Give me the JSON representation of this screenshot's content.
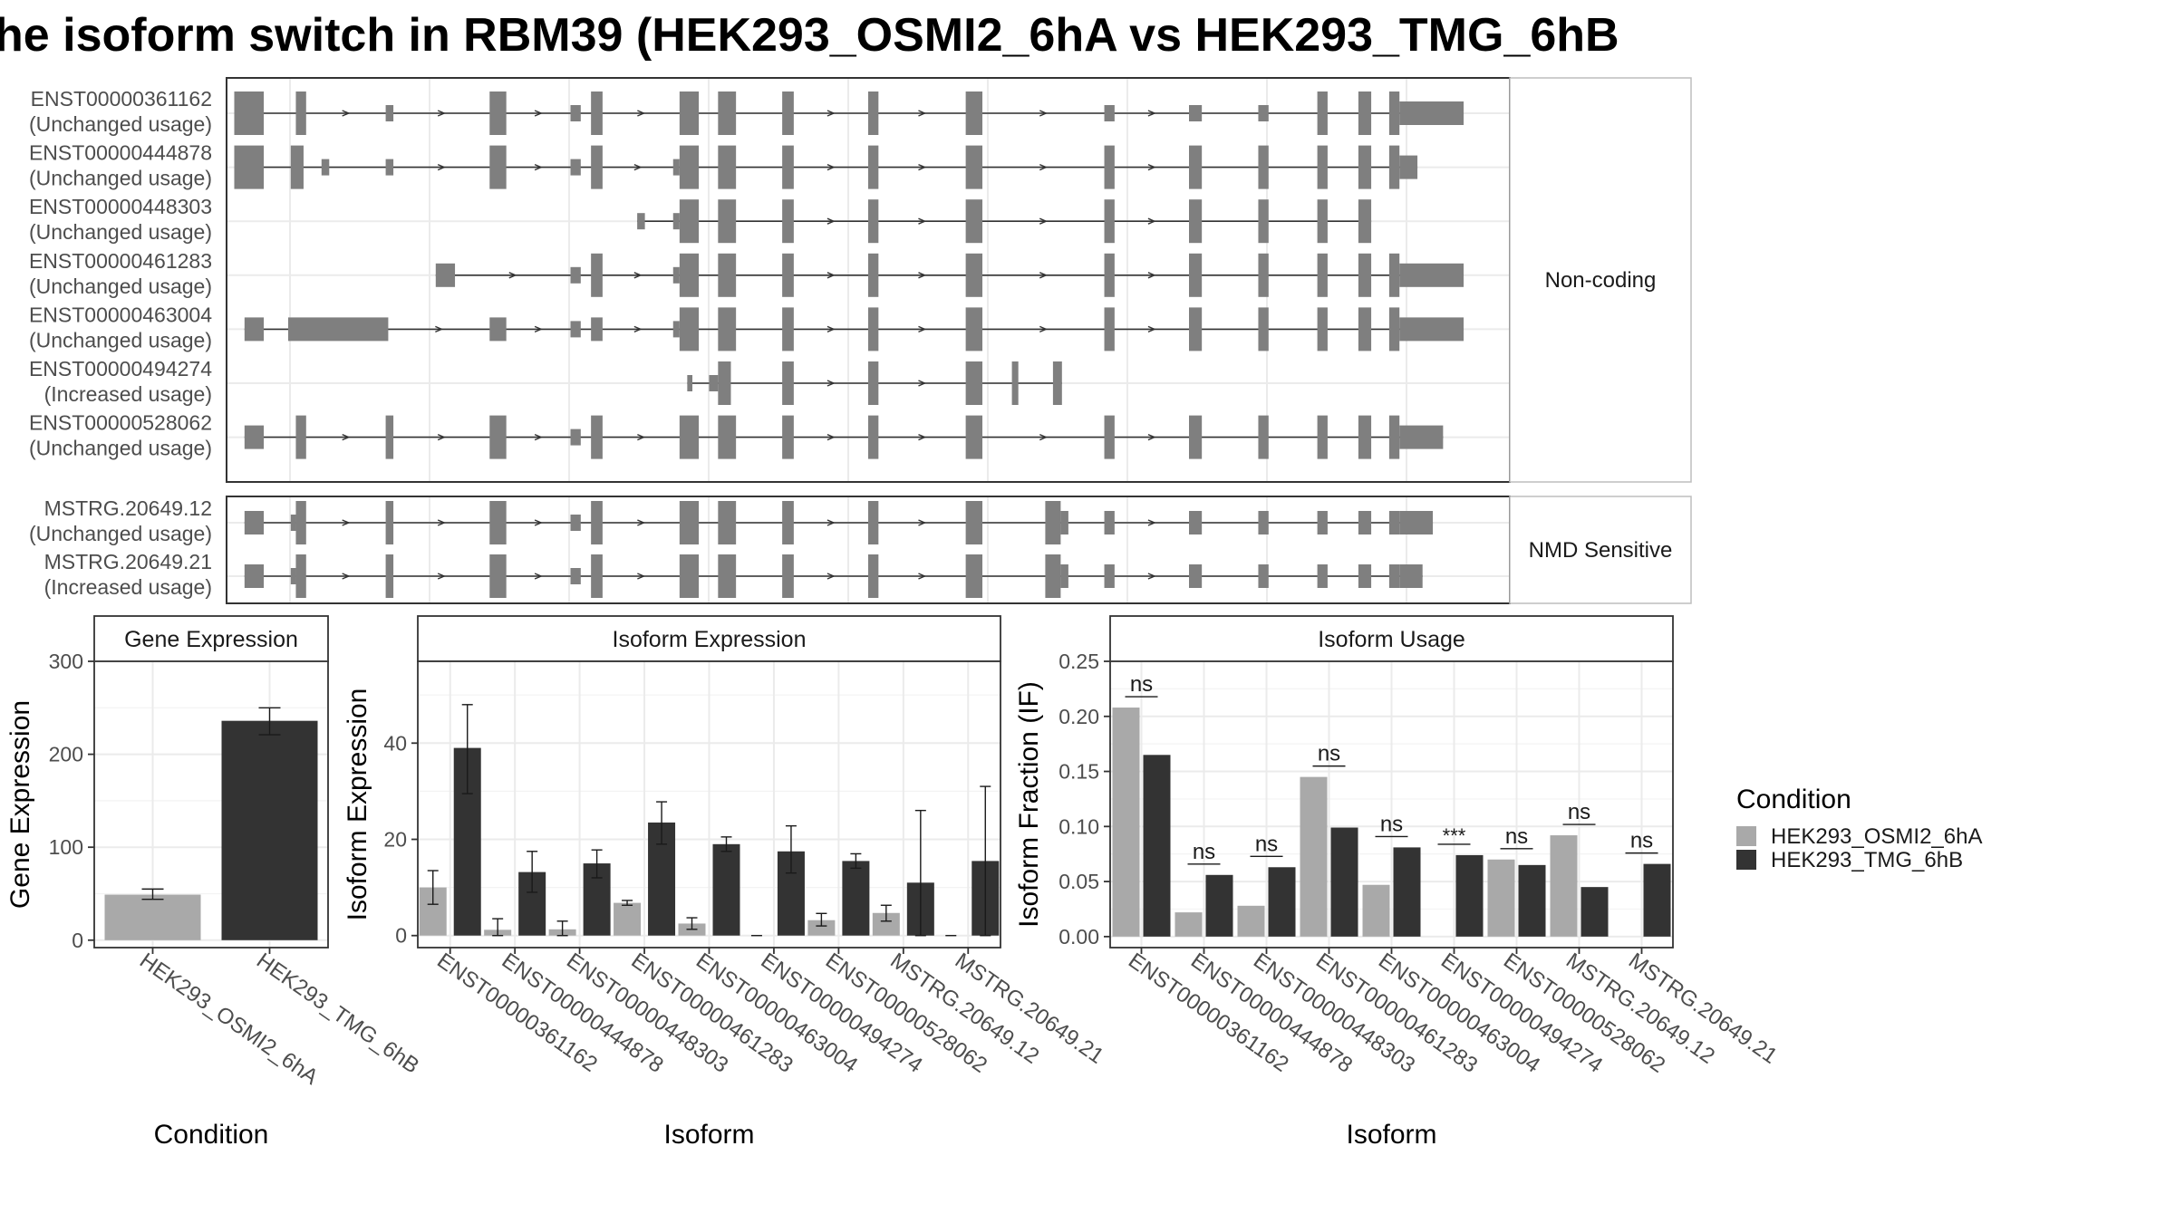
{
  "title": "he isoform switch in RBM39 (HEK293_OSMI2_6hA vs HEK293_TMG_6hB",
  "colors": {
    "cond1": "#a9a9a9",
    "cond2": "#333333",
    "exon": "#7f7f7f"
  },
  "structure_panels": [
    {
      "label": "Non-coding",
      "transcripts": [
        {
          "id": "ENST00000361162",
          "status": "(Unchanged usage)",
          "exons": [
            [
              0.6,
              2.9,
              "L"
            ],
            [
              5.4,
              6.2,
              "L"
            ],
            [
              12.4,
              13.0,
              "S"
            ],
            [
              20.5,
              21.8,
              "L"
            ],
            [
              26.8,
              27.6,
              "S"
            ],
            [
              28.4,
              29.3,
              "L"
            ],
            [
              35.3,
              36.8,
              "L"
            ],
            [
              38.3,
              39.7,
              "L"
            ],
            [
              43.3,
              44.2,
              "L"
            ],
            [
              50.0,
              50.8,
              "L"
            ],
            [
              57.6,
              58.9,
              "L"
            ],
            [
              68.4,
              69.2,
              "S"
            ],
            [
              75.0,
              76.0,
              "S"
            ],
            [
              80.4,
              81.2,
              "S"
            ],
            [
              85.0,
              85.8,
              "L"
            ],
            [
              88.2,
              89.2,
              "L"
            ],
            [
              90.6,
              91.4,
              "L"
            ],
            [
              91.4,
              96.4,
              "M"
            ]
          ]
        },
        {
          "id": "ENST00000444878",
          "status": "(Unchanged usage)",
          "exons": [
            [
              0.6,
              2.9,
              "L"
            ],
            [
              5.0,
              6.0,
              "L"
            ],
            [
              7.4,
              8.0,
              "S"
            ],
            [
              12.4,
              13.0,
              "S"
            ],
            [
              20.5,
              21.8,
              "L"
            ],
            [
              26.8,
              27.6,
              "S"
            ],
            [
              28.4,
              29.3,
              "L"
            ],
            [
              34.8,
              35.3,
              "S"
            ],
            [
              35.3,
              36.8,
              "L"
            ],
            [
              38.3,
              39.7,
              "L"
            ],
            [
              43.3,
              44.2,
              "L"
            ],
            [
              50.0,
              50.8,
              "L"
            ],
            [
              57.6,
              58.9,
              "L"
            ],
            [
              68.4,
              69.2,
              "L"
            ],
            [
              75.0,
              76.0,
              "L"
            ],
            [
              80.4,
              81.2,
              "L"
            ],
            [
              85.0,
              85.8,
              "L"
            ],
            [
              88.2,
              89.2,
              "L"
            ],
            [
              90.6,
              91.4,
              "L"
            ],
            [
              91.4,
              92.8,
              "M"
            ]
          ]
        },
        {
          "id": "ENST00000448303",
          "status": "(Unchanged usage)",
          "exons": [
            [
              32.0,
              32.6,
              "S"
            ],
            [
              34.8,
              35.3,
              "S"
            ],
            [
              35.3,
              36.8,
              "L"
            ],
            [
              38.3,
              39.7,
              "L"
            ],
            [
              43.3,
              44.2,
              "L"
            ],
            [
              50.0,
              50.8,
              "L"
            ],
            [
              57.6,
              58.9,
              "L"
            ],
            [
              68.4,
              69.2,
              "L"
            ],
            [
              75.0,
              76.0,
              "L"
            ],
            [
              80.4,
              81.2,
              "L"
            ],
            [
              85.0,
              85.8,
              "L"
            ],
            [
              88.2,
              89.2,
              "L"
            ]
          ]
        },
        {
          "id": "ENST00000461283",
          "status": "(Unchanged usage)",
          "exons": [
            [
              16.3,
              17.8,
              "M"
            ],
            [
              26.8,
              27.6,
              "S"
            ],
            [
              28.4,
              29.3,
              "L"
            ],
            [
              34.8,
              35.3,
              "S"
            ],
            [
              35.3,
              36.8,
              "L"
            ],
            [
              38.3,
              39.7,
              "L"
            ],
            [
              43.3,
              44.2,
              "L"
            ],
            [
              50.0,
              50.8,
              "L"
            ],
            [
              57.6,
              58.9,
              "L"
            ],
            [
              68.4,
              69.2,
              "L"
            ],
            [
              75.0,
              76.0,
              "L"
            ],
            [
              80.4,
              81.2,
              "L"
            ],
            [
              85.0,
              85.8,
              "L"
            ],
            [
              88.2,
              89.2,
              "L"
            ],
            [
              90.6,
              91.4,
              "L"
            ],
            [
              91.4,
              96.4,
              "M"
            ]
          ]
        },
        {
          "id": "ENST00000463004",
          "status": "(Unchanged usage)",
          "exons": [
            [
              1.4,
              2.9,
              "M"
            ],
            [
              4.8,
              12.6,
              "M"
            ],
            [
              20.5,
              21.8,
              "M"
            ],
            [
              26.8,
              27.6,
              "S"
            ],
            [
              28.4,
              29.3,
              "M"
            ],
            [
              34.8,
              35.3,
              "S"
            ],
            [
              35.3,
              36.8,
              "L"
            ],
            [
              38.3,
              39.7,
              "L"
            ],
            [
              43.3,
              44.2,
              "L"
            ],
            [
              50.0,
              50.8,
              "L"
            ],
            [
              57.6,
              58.9,
              "L"
            ],
            [
              68.4,
              69.2,
              "L"
            ],
            [
              75.0,
              76.0,
              "L"
            ],
            [
              80.4,
              81.2,
              "L"
            ],
            [
              85.0,
              85.8,
              "L"
            ],
            [
              88.2,
              89.2,
              "L"
            ],
            [
              90.6,
              91.4,
              "L"
            ],
            [
              91.4,
              96.4,
              "M"
            ]
          ]
        },
        {
          "id": "ENST00000494274",
          "status": "(Increased usage)",
          "exons": [
            [
              35.9,
              36.3,
              "S"
            ],
            [
              37.6,
              38.3,
              "S"
            ],
            [
              38.3,
              39.3,
              "L"
            ],
            [
              43.3,
              44.2,
              "L"
            ],
            [
              50.0,
              50.8,
              "L"
            ],
            [
              57.6,
              58.9,
              "L"
            ],
            [
              61.2,
              61.7,
              "L"
            ],
            [
              64.4,
              65.1,
              "L"
            ]
          ]
        },
        {
          "id": "ENST00000528062",
          "status": "(Unchanged usage)",
          "exons": [
            [
              1.4,
              2.9,
              "M"
            ],
            [
              5.4,
              6.2,
              "L"
            ],
            [
              12.4,
              13.0,
              "L"
            ],
            [
              20.5,
              21.8,
              "L"
            ],
            [
              26.8,
              27.6,
              "S"
            ],
            [
              28.4,
              29.3,
              "L"
            ],
            [
              35.3,
              36.8,
              "L"
            ],
            [
              38.3,
              39.7,
              "L"
            ],
            [
              43.3,
              44.2,
              "L"
            ],
            [
              50.0,
              50.8,
              "L"
            ],
            [
              57.6,
              58.9,
              "L"
            ],
            [
              68.4,
              69.2,
              "L"
            ],
            [
              75.0,
              76.0,
              "L"
            ],
            [
              80.4,
              81.2,
              "L"
            ],
            [
              85.0,
              85.8,
              "L"
            ],
            [
              88.2,
              89.2,
              "L"
            ],
            [
              90.6,
              91.4,
              "L"
            ],
            [
              91.4,
              94.8,
              "M"
            ]
          ]
        }
      ]
    },
    {
      "label": "NMD Sensitive",
      "transcripts": [
        {
          "id": "MSTRG.20649.12",
          "status": "(Unchanged usage)",
          "exons": [
            [
              1.4,
              2.9,
              "M"
            ],
            [
              5.0,
              5.4,
              "S"
            ],
            [
              5.4,
              6.2,
              "L"
            ],
            [
              12.4,
              13.0,
              "L"
            ],
            [
              20.5,
              21.8,
              "L"
            ],
            [
              26.8,
              27.6,
              "S"
            ],
            [
              28.4,
              29.3,
              "L"
            ],
            [
              35.3,
              36.8,
              "L"
            ],
            [
              38.3,
              39.7,
              "L"
            ],
            [
              43.3,
              44.2,
              "L"
            ],
            [
              50.0,
              50.8,
              "L"
            ],
            [
              57.6,
              58.9,
              "L"
            ],
            [
              63.8,
              65.0,
              "L"
            ],
            [
              65.0,
              65.6,
              "M"
            ],
            [
              68.4,
              69.2,
              "M"
            ],
            [
              75.0,
              76.0,
              "M"
            ],
            [
              80.4,
              81.2,
              "M"
            ],
            [
              85.0,
              85.8,
              "M"
            ],
            [
              88.2,
              89.2,
              "M"
            ],
            [
              90.6,
              91.4,
              "M"
            ],
            [
              91.4,
              94.0,
              "M"
            ]
          ]
        },
        {
          "id": "MSTRG.20649.21",
          "status": "(Increased usage)",
          "exons": [
            [
              1.4,
              2.9,
              "M"
            ],
            [
              5.0,
              5.4,
              "S"
            ],
            [
              5.4,
              6.2,
              "L"
            ],
            [
              12.4,
              13.0,
              "L"
            ],
            [
              20.5,
              21.8,
              "L"
            ],
            [
              26.8,
              27.6,
              "S"
            ],
            [
              28.4,
              29.3,
              "L"
            ],
            [
              35.3,
              36.8,
              "L"
            ],
            [
              38.3,
              39.7,
              "L"
            ],
            [
              43.3,
              44.2,
              "L"
            ],
            [
              50.0,
              50.8,
              "L"
            ],
            [
              57.6,
              58.9,
              "L"
            ],
            [
              63.8,
              65.0,
              "L"
            ],
            [
              65.0,
              65.6,
              "M"
            ],
            [
              68.4,
              69.2,
              "M"
            ],
            [
              75.0,
              76.0,
              "M"
            ],
            [
              80.4,
              81.2,
              "M"
            ],
            [
              85.0,
              85.8,
              "M"
            ],
            [
              88.2,
              89.2,
              "M"
            ],
            [
              90.6,
              91.4,
              "M"
            ],
            [
              91.4,
              93.2,
              "M"
            ]
          ]
        }
      ]
    }
  ],
  "legend": {
    "title": "Condition",
    "items": [
      {
        "label": "HEK293_OSMI2_6hA",
        "color": "#a9a9a9"
      },
      {
        "label": "HEK293_TMG_6hB",
        "color": "#333333"
      }
    ]
  },
  "chart_data": [
    {
      "type": "bar",
      "title": "Gene Expression",
      "xlabel": "Condition",
      "ylabel": "Gene Expression",
      "ylim": [
        -8,
        300
      ],
      "yticks": [
        0,
        100,
        200,
        300
      ],
      "categories": [
        "HEK293_OSMI2_6hA",
        "HEK293_TMG_6hB"
      ],
      "values": [
        49,
        236
      ],
      "errors": [
        [
          44,
          55
        ],
        [
          221,
          250
        ]
      ],
      "bar_color_index": [
        0,
        1
      ]
    },
    {
      "type": "bar",
      "title": "Isoform Expression",
      "xlabel": "Isoform",
      "ylabel": "Isoform Expression",
      "ylim": [
        -2.5,
        57
      ],
      "yticks": [
        0,
        20,
        40
      ],
      "categories": [
        "ENST00000361162",
        "ENST00000444878",
        "ENST00000448303",
        "ENST00000461283",
        "ENST00000463004",
        "ENST00000494274",
        "ENST00000528062",
        "MSTRG.20649.12",
        "MSTRG.20649.21"
      ],
      "series": [
        {
          "name": "HEK293_OSMI2_6hA",
          "values": [
            10,
            1.2,
            1.3,
            6.8,
            2.5,
            0,
            3.2,
            4.7,
            0
          ],
          "errors": [
            [
              6.5,
              13.5
            ],
            [
              0,
              3.5
            ],
            [
              0,
              3
            ],
            [
              6.3,
              7.3
            ],
            [
              1.3,
              3.7
            ],
            [
              0,
              0
            ],
            [
              2,
              4.6
            ],
            [
              3,
              6.3
            ],
            [
              0,
              0
            ]
          ]
        },
        {
          "name": "HEK293_TMG_6hB",
          "values": [
            39,
            13.2,
            15,
            23.5,
            19,
            17.5,
            15.5,
            11,
            15.5
          ],
          "errors": [
            [
              29.5,
              48
            ],
            [
              9,
              17.5
            ],
            [
              12,
              17.8
            ],
            [
              19,
              27.8
            ],
            [
              17.5,
              20.5
            ],
            [
              13,
              22.8
            ],
            [
              14,
              17
            ],
            [
              0,
              26
            ],
            [
              0,
              31
            ]
          ]
        }
      ]
    },
    {
      "type": "bar",
      "title": "Isoform Usage",
      "xlabel": "Isoform",
      "ylabel": "Isoform Fraction (IF)",
      "ylim": [
        -0.01,
        0.25
      ],
      "yticks": [
        0.0,
        0.05,
        0.1,
        0.15,
        0.2,
        0.25
      ],
      "ytick_labels": [
        "0.00",
        "0.05",
        "0.10",
        "0.15",
        "0.20",
        "0.25"
      ],
      "categories": [
        "ENST00000361162",
        "ENST00000444878",
        "ENST00000448303",
        "ENST00000461283",
        "ENST00000463004",
        "ENST00000494274",
        "ENST00000528062",
        "MSTRG.20649.12",
        "MSTRG.20649.21"
      ],
      "series": [
        {
          "name": "HEK293_OSMI2_6hA",
          "values": [
            0.208,
            0.022,
            0.028,
            0.145,
            0.047,
            0,
            0.07,
            0.092,
            0
          ]
        },
        {
          "name": "HEK293_TMG_6hB",
          "values": [
            0.165,
            0.056,
            0.063,
            0.099,
            0.081,
            0.074,
            0.065,
            0.045,
            0.066
          ]
        }
      ],
      "significance": [
        "ns",
        "ns",
        "ns",
        "ns",
        "ns",
        "***",
        "ns",
        "ns",
        "ns"
      ]
    }
  ]
}
